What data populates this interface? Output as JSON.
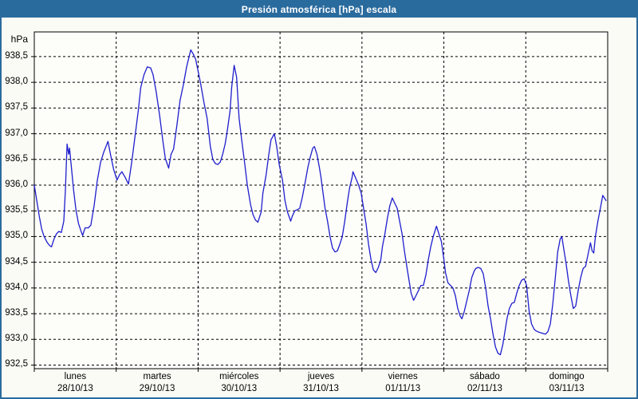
{
  "header": {
    "title": "Presión atmosférica [hPa] escala"
  },
  "colors": {
    "titlebar_bg": "#2a6b9e",
    "page_border": "#2a6b9e",
    "content_bg": "#fbfbf6",
    "plot_bg": "#fdfdfa",
    "grid": "#000000",
    "line": "#1e1ecd",
    "title_text": "#ffffff"
  },
  "chart_data": {
    "type": "line",
    "title": "Presión atmosférica [hPa] escala",
    "ylabel": "hPa",
    "decimal_separator": ",",
    "grid": true,
    "ylim": [
      932.43,
      938.98
    ],
    "xlim_days": [
      0,
      7
    ],
    "y_ticks": [
      {
        "label": "938,5",
        "value": 938.5
      },
      {
        "label": "938,0",
        "value": 938.0
      },
      {
        "label": "937,5",
        "value": 937.5
      },
      {
        "label": "937,0",
        "value": 937.0
      },
      {
        "label": "936,5",
        "value": 936.5
      },
      {
        "label": "936,0",
        "value": 936.0
      },
      {
        "label": "935,5",
        "value": 935.5
      },
      {
        "label": "935,0",
        "value": 935.0
      },
      {
        "label": "934,5",
        "value": 934.5
      },
      {
        "label": "934,0",
        "value": 934.0
      },
      {
        "label": "933,5",
        "value": 933.5
      },
      {
        "label": "933,0",
        "value": 933.0
      },
      {
        "label": "932,5",
        "value": 932.5
      }
    ],
    "x_days": [
      {
        "label": "lunes",
        "date": "28/10/13"
      },
      {
        "label": "martes",
        "date": "29/10/13"
      },
      {
        "label": "miércoles",
        "date": "30/10/13"
      },
      {
        "label": "jueves",
        "date": "31/10/13"
      },
      {
        "label": "viernes",
        "date": "01/11/13"
      },
      {
        "label": "sábado",
        "date": "02/11/13"
      },
      {
        "label": "domingo",
        "date": "03/11/13"
      }
    ],
    "series": [
      {
        "name": "Presión atmosférica",
        "color": "#1e1ecd",
        "x_unit": "days_since_monday_00h",
        "points": [
          [
            0.0,
            936.0
          ],
          [
            0.03,
            935.7
          ],
          [
            0.06,
            935.4
          ],
          [
            0.09,
            935.15
          ],
          [
            0.12,
            935.0
          ],
          [
            0.16,
            934.88
          ],
          [
            0.19,
            934.82
          ],
          [
            0.21,
            934.8
          ],
          [
            0.24,
            934.95
          ],
          [
            0.27,
            935.05
          ],
          [
            0.3,
            935.1
          ],
          [
            0.33,
            935.08
          ],
          [
            0.36,
            935.3
          ],
          [
            0.38,
            935.9
          ],
          [
            0.4,
            936.8
          ],
          [
            0.42,
            936.6
          ],
          [
            0.43,
            936.72
          ],
          [
            0.45,
            936.4
          ],
          [
            0.48,
            935.9
          ],
          [
            0.51,
            935.5
          ],
          [
            0.54,
            935.25
          ],
          [
            0.57,
            935.11
          ],
          [
            0.59,
            935.02
          ],
          [
            0.62,
            935.17
          ],
          [
            0.66,
            935.17
          ],
          [
            0.69,
            935.22
          ],
          [
            0.73,
            935.6
          ],
          [
            0.77,
            936.1
          ],
          [
            0.81,
            936.45
          ],
          [
            0.85,
            936.65
          ],
          [
            0.9,
            936.85
          ],
          [
            0.93,
            936.6
          ],
          [
            0.97,
            936.3
          ],
          [
            1.01,
            936.1
          ],
          [
            1.04,
            936.2
          ],
          [
            1.07,
            936.26
          ],
          [
            1.11,
            936.15
          ],
          [
            1.15,
            936.02
          ],
          [
            1.19,
            936.45
          ],
          [
            1.23,
            936.95
          ],
          [
            1.27,
            937.45
          ],
          [
            1.3,
            937.9
          ],
          [
            1.34,
            938.15
          ],
          [
            1.38,
            938.3
          ],
          [
            1.42,
            938.28
          ],
          [
            1.45,
            938.15
          ],
          [
            1.49,
            937.8
          ],
          [
            1.53,
            937.35
          ],
          [
            1.57,
            936.85
          ],
          [
            1.6,
            936.52
          ],
          [
            1.64,
            936.33
          ],
          [
            1.67,
            936.6
          ],
          [
            1.7,
            936.7
          ],
          [
            1.74,
            937.15
          ],
          [
            1.78,
            937.65
          ],
          [
            1.82,
            937.95
          ],
          [
            1.86,
            938.3
          ],
          [
            1.91,
            938.63
          ],
          [
            1.94,
            938.55
          ],
          [
            1.97,
            938.45
          ],
          [
            2.0,
            938.22
          ],
          [
            2.03,
            937.98
          ],
          [
            2.07,
            937.62
          ],
          [
            2.11,
            937.3
          ],
          [
            2.15,
            936.75
          ],
          [
            2.18,
            936.5
          ],
          [
            2.21,
            936.42
          ],
          [
            2.24,
            936.4
          ],
          [
            2.27,
            936.45
          ],
          [
            2.3,
            936.6
          ],
          [
            2.33,
            936.8
          ],
          [
            2.36,
            937.1
          ],
          [
            2.39,
            937.45
          ],
          [
            2.41,
            937.9
          ],
          [
            2.44,
            938.33
          ],
          [
            2.47,
            938.1
          ],
          [
            2.5,
            937.3
          ],
          [
            2.53,
            936.9
          ],
          [
            2.57,
            936.4
          ],
          [
            2.6,
            936.0
          ],
          [
            2.64,
            935.62
          ],
          [
            2.67,
            935.43
          ],
          [
            2.7,
            935.32
          ],
          [
            2.73,
            935.28
          ],
          [
            2.77,
            935.48
          ],
          [
            2.79,
            935.84
          ],
          [
            2.83,
            936.2
          ],
          [
            2.86,
            936.57
          ],
          [
            2.89,
            936.88
          ],
          [
            2.93,
            937.0
          ],
          [
            2.96,
            936.75
          ],
          [
            2.99,
            936.4
          ],
          [
            3.03,
            936.1
          ],
          [
            3.06,
            935.7
          ],
          [
            3.09,
            935.48
          ],
          [
            3.13,
            935.3
          ],
          [
            3.15,
            935.4
          ],
          [
            3.18,
            935.5
          ],
          [
            3.21,
            935.52
          ],
          [
            3.24,
            935.55
          ],
          [
            3.27,
            935.75
          ],
          [
            3.3,
            936.0
          ],
          [
            3.34,
            936.35
          ],
          [
            3.37,
            936.55
          ],
          [
            3.4,
            936.72
          ],
          [
            3.42,
            936.75
          ],
          [
            3.45,
            936.6
          ],
          [
            3.48,
            936.35
          ],
          [
            3.5,
            936.15
          ],
          [
            3.52,
            935.9
          ],
          [
            3.55,
            935.55
          ],
          [
            3.58,
            935.3
          ],
          [
            3.61,
            935.0
          ],
          [
            3.64,
            934.78
          ],
          [
            3.67,
            934.7
          ],
          [
            3.7,
            934.72
          ],
          [
            3.73,
            934.85
          ],
          [
            3.76,
            935.0
          ],
          [
            3.79,
            935.3
          ],
          [
            3.82,
            935.65
          ],
          [
            3.85,
            935.95
          ],
          [
            3.88,
            936.15
          ],
          [
            3.89,
            936.26
          ],
          [
            3.92,
            936.15
          ],
          [
            3.96,
            936.0
          ],
          [
            3.99,
            935.85
          ],
          [
            4.02,
            935.55
          ],
          [
            4.05,
            935.25
          ],
          [
            4.08,
            934.85
          ],
          [
            4.11,
            934.55
          ],
          [
            4.14,
            934.35
          ],
          [
            4.17,
            934.3
          ],
          [
            4.2,
            934.4
          ],
          [
            4.23,
            934.55
          ],
          [
            4.25,
            934.8
          ],
          [
            4.28,
            935.05
          ],
          [
            4.31,
            935.35
          ],
          [
            4.34,
            935.6
          ],
          [
            4.37,
            935.75
          ],
          [
            4.4,
            935.65
          ],
          [
            4.43,
            935.55
          ],
          [
            4.46,
            935.3
          ],
          [
            4.49,
            935.05
          ],
          [
            4.52,
            934.7
          ],
          [
            4.55,
            934.4
          ],
          [
            4.58,
            934.1
          ],
          [
            4.6,
            933.9
          ],
          [
            4.63,
            933.76
          ],
          [
            4.66,
            933.85
          ],
          [
            4.69,
            933.95
          ],
          [
            4.72,
            934.05
          ],
          [
            4.75,
            934.05
          ],
          [
            4.78,
            934.25
          ],
          [
            4.81,
            934.55
          ],
          [
            4.84,
            934.8
          ],
          [
            4.87,
            935.0
          ],
          [
            4.91,
            935.2
          ],
          [
            4.94,
            935.05
          ],
          [
            4.97,
            934.9
          ],
          [
            5.0,
            934.55
          ],
          [
            5.02,
            934.3
          ],
          [
            5.05,
            934.1
          ],
          [
            5.08,
            934.05
          ],
          [
            5.11,
            934.0
          ],
          [
            5.14,
            933.85
          ],
          [
            5.17,
            933.6
          ],
          [
            5.2,
            933.45
          ],
          [
            5.22,
            933.4
          ],
          [
            5.25,
            933.55
          ],
          [
            5.28,
            933.75
          ],
          [
            5.31,
            933.95
          ],
          [
            5.34,
            934.2
          ],
          [
            5.37,
            934.33
          ],
          [
            5.39,
            934.38
          ],
          [
            5.42,
            934.4
          ],
          [
            5.45,
            934.38
          ],
          [
            5.48,
            934.28
          ],
          [
            5.51,
            934.0
          ],
          [
            5.54,
            933.65
          ],
          [
            5.57,
            933.4
          ],
          [
            5.6,
            933.1
          ],
          [
            5.63,
            932.85
          ],
          [
            5.66,
            932.73
          ],
          [
            5.69,
            932.7
          ],
          [
            5.72,
            932.9
          ],
          [
            5.74,
            933.1
          ],
          [
            5.77,
            933.4
          ],
          [
            5.8,
            933.6
          ],
          [
            5.83,
            933.7
          ],
          [
            5.86,
            933.72
          ],
          [
            5.89,
            933.9
          ],
          [
            5.92,
            934.05
          ],
          [
            5.95,
            934.15
          ],
          [
            5.98,
            934.18
          ],
          [
            6.01,
            934.05
          ],
          [
            6.04,
            933.56
          ],
          [
            6.07,
            933.3
          ],
          [
            6.1,
            933.2
          ],
          [
            6.12,
            933.17
          ],
          [
            6.16,
            933.14
          ],
          [
            6.2,
            933.12
          ],
          [
            6.24,
            933.1
          ],
          [
            6.27,
            933.15
          ],
          [
            6.3,
            933.3
          ],
          [
            6.33,
            933.7
          ],
          [
            6.36,
            934.2
          ],
          [
            6.39,
            934.7
          ],
          [
            6.42,
            934.95
          ],
          [
            6.44,
            935.0
          ],
          [
            6.46,
            934.8
          ],
          [
            6.49,
            934.5
          ],
          [
            6.52,
            934.15
          ],
          [
            6.55,
            933.85
          ],
          [
            6.58,
            933.6
          ],
          [
            6.61,
            933.65
          ],
          [
            6.64,
            933.95
          ],
          [
            6.67,
            934.2
          ],
          [
            6.7,
            934.38
          ],
          [
            6.73,
            934.42
          ],
          [
            6.76,
            934.65
          ],
          [
            6.79,
            934.88
          ],
          [
            6.81,
            934.72
          ],
          [
            6.83,
            934.68
          ],
          [
            6.85,
            935.0
          ],
          [
            6.88,
            935.3
          ],
          [
            6.91,
            935.55
          ],
          [
            6.94,
            935.8
          ],
          [
            6.96,
            935.75
          ],
          [
            6.98,
            935.7
          ]
        ]
      }
    ]
  }
}
